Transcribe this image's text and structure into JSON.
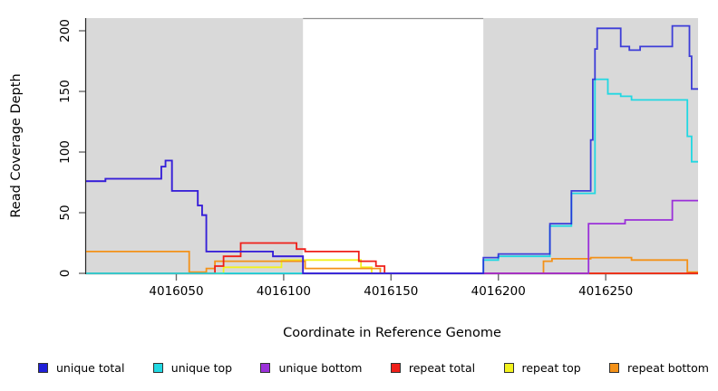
{
  "chart_data": {
    "type": "line",
    "subtype": "step",
    "title": "",
    "xlabel": "Coordinate in Reference Genome",
    "ylabel": "Read Coverage Depth",
    "xlim": [
      4016008,
      4016293
    ],
    "ylim": [
      0,
      210
    ],
    "x_ticks": [
      4016050,
      4016100,
      4016150,
      4016200,
      4016250
    ],
    "y_ticks": [
      0,
      50,
      100,
      150,
      200
    ],
    "grid": false,
    "legend_position": "bottom",
    "plot_background": "#d9d9d9",
    "page_background": "#ffffff",
    "axis_color": "#262626",
    "tick_color": "#6a6a6a",
    "masked_regions": [
      [
        4016008,
        4016109
      ],
      [
        4016193,
        4016293
      ]
    ],
    "unmasked_region": [
      4016109,
      4016193
    ],
    "series": [
      {
        "label": "unique total",
        "color": "#1f1fd8",
        "points": [
          [
            4016008,
            76
          ],
          [
            4016017,
            78
          ],
          [
            4016043,
            88
          ],
          [
            4016045,
            93
          ],
          [
            4016048,
            68
          ],
          [
            4016060,
            56
          ],
          [
            4016062,
            48
          ],
          [
            4016064,
            18
          ],
          [
            4016095,
            14
          ],
          [
            4016109,
            0
          ],
          [
            4016193,
            13
          ],
          [
            4016200,
            16
          ],
          [
            4016224,
            41
          ],
          [
            4016234,
            68
          ],
          [
            4016243,
            110
          ],
          [
            4016244,
            160
          ],
          [
            4016245,
            185
          ],
          [
            4016246,
            202
          ],
          [
            4016257,
            187
          ],
          [
            4016261,
            184
          ],
          [
            4016266,
            187
          ],
          [
            4016281,
            204
          ],
          [
            4016289,
            179
          ],
          [
            4016290,
            152
          ],
          [
            4016293,
            152
          ]
        ]
      },
      {
        "label": "unique top",
        "color": "#21d8e2",
        "points": [
          [
            4016008,
            0
          ],
          [
            4016193,
            11
          ],
          [
            4016200,
            14
          ],
          [
            4016224,
            39
          ],
          [
            4016234,
            66
          ],
          [
            4016245,
            160
          ],
          [
            4016251,
            148
          ],
          [
            4016257,
            146
          ],
          [
            4016262,
            143
          ],
          [
            4016288,
            113
          ],
          [
            4016290,
            92
          ],
          [
            4016293,
            92
          ]
        ]
      },
      {
        "label": "unique bottom",
        "color": "#9b30d9",
        "points": [
          [
            4016008,
            76
          ],
          [
            4016017,
            78
          ],
          [
            4016043,
            88
          ],
          [
            4016045,
            93
          ],
          [
            4016048,
            68
          ],
          [
            4016060,
            56
          ],
          [
            4016062,
            48
          ],
          [
            4016064,
            18
          ],
          [
            4016095,
            14
          ],
          [
            4016109,
            0
          ],
          [
            4016242,
            41
          ],
          [
            4016259,
            44
          ],
          [
            4016281,
            60
          ],
          [
            4016293,
            60
          ]
        ]
      },
      {
        "label": "repeat total",
        "color": "#ef1f19",
        "points": [
          [
            4016008,
            0
          ],
          [
            4016068,
            6
          ],
          [
            4016072,
            14
          ],
          [
            4016080,
            25
          ],
          [
            4016106,
            20
          ],
          [
            4016110,
            18
          ],
          [
            4016135,
            10
          ],
          [
            4016143,
            6
          ],
          [
            4016147,
            0
          ],
          [
            4016293,
            0
          ]
        ]
      },
      {
        "label": "repeat top",
        "color": "#f2f21e",
        "points": [
          [
            4016008,
            0
          ],
          [
            4016072,
            5
          ],
          [
            4016099,
            11
          ],
          [
            4016136,
            5
          ],
          [
            4016141,
            0
          ],
          [
            4016293,
            0
          ]
        ]
      },
      {
        "label": "repeat bottom",
        "color": "#f39118",
        "points": [
          [
            4016008,
            18
          ],
          [
            4016056,
            1
          ],
          [
            4016064,
            4
          ],
          [
            4016068,
            10
          ],
          [
            4016110,
            4
          ],
          [
            4016145,
            0
          ],
          [
            4016221,
            10
          ],
          [
            4016225,
            12
          ],
          [
            4016243,
            13
          ],
          [
            4016262,
            11
          ],
          [
            4016288,
            1
          ],
          [
            4016293,
            1
          ]
        ]
      }
    ]
  }
}
